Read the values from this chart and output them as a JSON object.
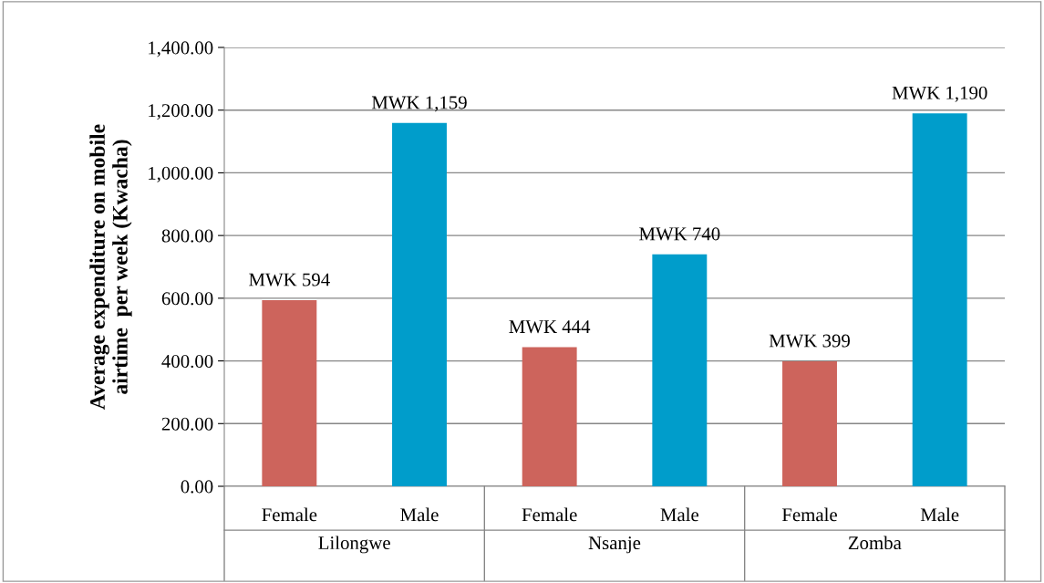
{
  "chart_data": {
    "type": "bar",
    "ylabel": "Average expenditure on mobile\nairtime  per week (Kwacha)",
    "categories": [
      "Female",
      "Male",
      "Female",
      "Male",
      "Female",
      "Male"
    ],
    "values": [
      594,
      1159,
      444,
      740,
      399,
      1190
    ],
    "colors": [
      "#cd645c",
      "#009dcb",
      "#cd645c",
      "#009dcb",
      "#cd645c",
      "#009dcb"
    ],
    "value_labels": [
      "MWK 594",
      "MWK 1,159",
      "MWK 444",
      "MWK 740",
      "MWK 399",
      "MWK 1,190"
    ],
    "annotations": [
      "Lilongwe",
      "Nsanje",
      "Zomba"
    ],
    "ylim": [
      0,
      1400
    ],
    "yticks": [
      {
        "value": 0,
        "label": "0.00"
      },
      {
        "value": 200,
        "label": "200.00"
      },
      {
        "value": 400,
        "label": "400.00"
      },
      {
        "value": 600,
        "label": "600.00"
      },
      {
        "value": 800,
        "label": "800.00"
      },
      {
        "value": 1000,
        "label": "1,000.00"
      },
      {
        "value": 1200,
        "label": "1,200.00"
      },
      {
        "value": 1400,
        "label": "1,400.00"
      }
    ],
    "grid": "y",
    "legend": false
  }
}
